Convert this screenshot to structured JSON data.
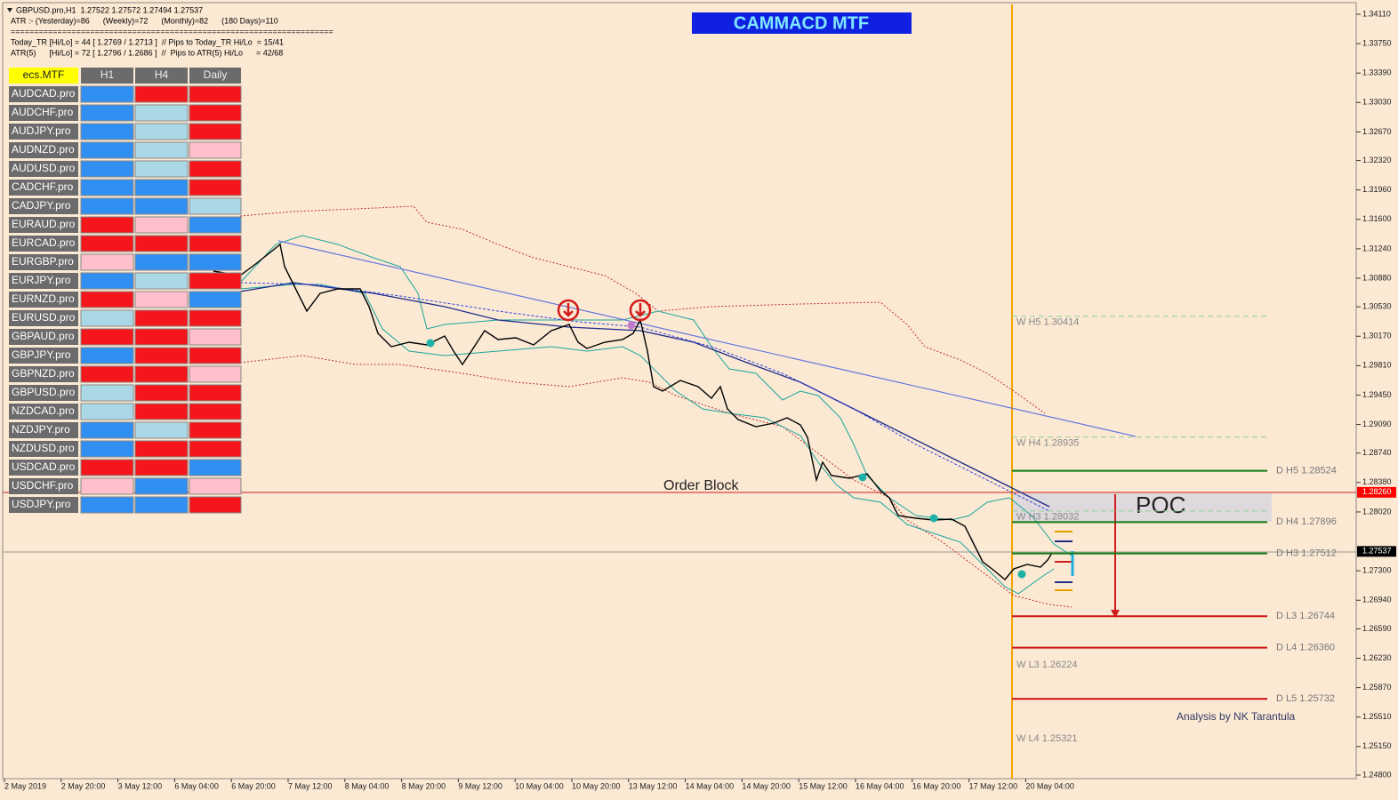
{
  "header": {
    "lines": [
      "GBPUSD.pro,H1  1.27522 1.27572 1.27494 1.27537",
      "ATR :- (Yesterday)=86      (Weekly)=72      (Monthly)=82      (180 Days)=110",
      "=====================================================================",
      "Today_TR [Hi/Lo] = 44 [ 1.2769 / 1.2713 ]  // Pips to Today_TR Hi/Lo  = 15/41",
      "ATR(5)      [Hi/Lo] = 72 [ 1.2796 / 1.2686 ]  //  Pips to ATR(5) Hi/Lo      = 42/68"
    ]
  },
  "title": "CAMMACD MTF",
  "table": {
    "columns": [
      "ecs.MTF",
      "H1",
      "H4",
      "Daily"
    ],
    "rows": [
      {
        "symbol": "AUDCAD.pro",
        "signals": [
          "blue",
          "red",
          "red"
        ]
      },
      {
        "symbol": "AUDCHF.pro",
        "signals": [
          "blue",
          "lightblue",
          "red"
        ]
      },
      {
        "symbol": "AUDJPY.pro",
        "signals": [
          "blue",
          "lightblue",
          "red"
        ]
      },
      {
        "symbol": "AUDNZD.pro",
        "signals": [
          "blue",
          "lightblue",
          "pink"
        ]
      },
      {
        "symbol": "AUDUSD.pro",
        "signals": [
          "blue",
          "lightblue",
          "red"
        ]
      },
      {
        "symbol": "CADCHF.pro",
        "signals": [
          "blue",
          "blue",
          "red"
        ]
      },
      {
        "symbol": "CADJPY.pro",
        "signals": [
          "blue",
          "blue",
          "lightblue"
        ]
      },
      {
        "symbol": "EURAUD.pro",
        "signals": [
          "red",
          "pink",
          "blue"
        ]
      },
      {
        "symbol": "EURCAD.pro",
        "signals": [
          "red",
          "red",
          "red"
        ]
      },
      {
        "symbol": "EURGBP.pro",
        "signals": [
          "pink",
          "blue",
          "blue"
        ]
      },
      {
        "symbol": "EURJPY.pro",
        "signals": [
          "blue",
          "lightblue",
          "red"
        ]
      },
      {
        "symbol": "EURNZD.pro",
        "signals": [
          "red",
          "pink",
          "blue"
        ]
      },
      {
        "symbol": "EURUSD.pro",
        "signals": [
          "lightblue",
          "red",
          "red"
        ]
      },
      {
        "symbol": "GBPAUD.pro",
        "signals": [
          "red",
          "red",
          "pink"
        ]
      },
      {
        "symbol": "GBPJPY.pro",
        "signals": [
          "blue",
          "red",
          "red"
        ]
      },
      {
        "symbol": "GBPNZD.pro",
        "signals": [
          "red",
          "red",
          "pink"
        ]
      },
      {
        "symbol": "GBPUSD.pro",
        "signals": [
          "lightblue",
          "red",
          "red"
        ]
      },
      {
        "symbol": "NZDCAD.pro",
        "signals": [
          "lightblue",
          "red",
          "red"
        ]
      },
      {
        "symbol": "NZDJPY.pro",
        "signals": [
          "blue",
          "lightblue",
          "red"
        ]
      },
      {
        "symbol": "NZDUSD.pro",
        "signals": [
          "blue",
          "red",
          "red"
        ]
      },
      {
        "symbol": "USDCAD.pro",
        "signals": [
          "red",
          "red",
          "blue"
        ]
      },
      {
        "symbol": "USDCHF.pro",
        "signals": [
          "pink",
          "blue",
          "pink"
        ]
      },
      {
        "symbol": "USDJPY.pro",
        "signals": [
          "blue",
          "blue",
          "red"
        ]
      }
    ]
  },
  "price_axis": {
    "ticks": [
      "1.34110",
      "1.33750",
      "1.33390",
      "1.33030",
      "1.32670",
      "1.32320",
      "1.31960",
      "1.31600",
      "1.31240",
      "1.30880",
      "1.30530",
      "1.30170",
      "1.29810",
      "1.29450",
      "1.29090",
      "1.28740",
      "1.28380",
      "1.28020",
      "1.27300",
      "1.26940",
      "1.26590",
      "1.26230",
      "1.25870",
      "1.25510",
      "1.25150",
      "1.24800"
    ],
    "markers": [
      {
        "label": "1.28260",
        "color": "red"
      },
      {
        "label": "1.27537",
        "color": "black"
      }
    ]
  },
  "time_axis": {
    "labels": [
      "2 May 2019",
      "2 May 20:00",
      "3 May 12:00",
      "6 May 04:00",
      "6 May 20:00",
      "7 May 12:00",
      "8 May 04:00",
      "8 May 20:00",
      "9 May 12:00",
      "10 May 04:00",
      "10 May 20:00",
      "13 May 12:00",
      "14 May 04:00",
      "14 May 20:00",
      "15 May 12:00",
      "16 May 04:00",
      "16 May 20:00",
      "17 May 12:00",
      "20 May 04:00"
    ]
  },
  "levels": {
    "weekly": [
      {
        "label": "W H5 1.30414",
        "style": "dashed"
      },
      {
        "label": "W H4 1.28935",
        "style": "dashed"
      },
      {
        "label": "W H3 1.28032",
        "style": "dashed"
      },
      {
        "label": "W L3 1.26224",
        "style": "none"
      },
      {
        "label": "W L4 1.25321",
        "style": "none"
      }
    ],
    "daily": [
      {
        "label": "D H5 1.28524",
        "color": "green"
      },
      {
        "label": "D H4 1.27896",
        "color": "green"
      },
      {
        "label": "D H3 1.27512",
        "color": "green"
      },
      {
        "label": "D L3 1.26744",
        "color": "red"
      },
      {
        "label": "D L4 1.26360",
        "color": "red"
      },
      {
        "label": "D L5 1.25732",
        "color": "red"
      }
    ]
  },
  "annotations": {
    "order_block": "Order Block",
    "poc": "POC",
    "credit": "Analysis by NK Tarantula"
  }
}
